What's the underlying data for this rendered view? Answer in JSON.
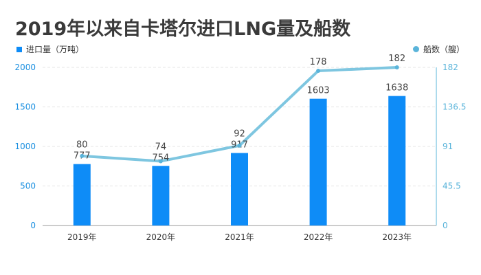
{
  "chart_data": {
    "type": "bar+line",
    "title": "2019年以来自卡塔尔进口LNG量及船数",
    "categories": [
      "2019年",
      "2020年",
      "2021年",
      "2022年",
      "2023年"
    ],
    "series": [
      {
        "name": "进口量（万吨）",
        "type": "bar",
        "axis": "left",
        "color": "#0e8cf7",
        "values": [
          777,
          754,
          917,
          1603,
          1638
        ]
      },
      {
        "name": "船数（艘）",
        "type": "line",
        "axis": "right",
        "color": "#7ec6e0",
        "values": [
          80,
          74,
          92,
          178,
          182
        ]
      }
    ],
    "left_axis": {
      "ylim": [
        0,
        2000
      ],
      "ticks": [
        "0",
        "500",
        "1000",
        "1500",
        "2000"
      ]
    },
    "right_axis": {
      "ylim": [
        0,
        182
      ],
      "ticks": [
        "0",
        "45.5",
        "91",
        "136.5",
        "182"
      ]
    },
    "grid": true,
    "legend": "top"
  }
}
